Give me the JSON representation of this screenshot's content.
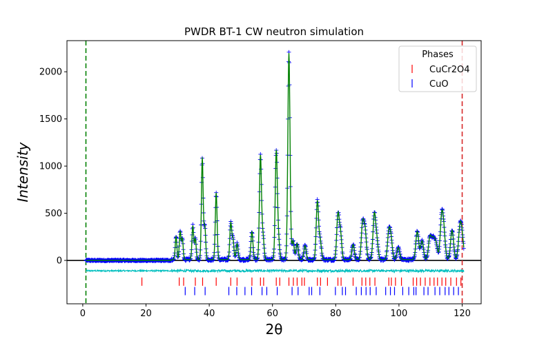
{
  "chart_data": {
    "type": "line",
    "title": "PWDR BT-1 CW neutron simulation",
    "xlabel": "2θ",
    "ylabel": "Intensity",
    "xlim": [
      -5,
      126
    ],
    "ylim": [
      -460,
      2330
    ],
    "xticks": [
      0,
      20,
      40,
      60,
      80,
      100,
      120
    ],
    "yticks": [
      0,
      500,
      1000,
      1500,
      2000
    ],
    "grid": false,
    "baseline_y": 0,
    "x_range_markers": [
      {
        "x": 1.0,
        "color": "#008000"
      },
      {
        "x": 120.0,
        "color": "#d62728"
      }
    ],
    "difference_offset": -110,
    "data_start_x": 1.0,
    "data_end_x": 120.5,
    "noise_level": 12,
    "peaks": [
      {
        "x": 29.5,
        "y": 250
      },
      {
        "x": 30.8,
        "y": 300
      },
      {
        "x": 31.5,
        "y": 220
      },
      {
        "x": 34.8,
        "y": 360
      },
      {
        "x": 35.6,
        "y": 220
      },
      {
        "x": 37.8,
        "y": 1080
      },
      {
        "x": 38.6,
        "y": 350
      },
      {
        "x": 42.2,
        "y": 710
      },
      {
        "x": 46.8,
        "y": 380
      },
      {
        "x": 47.5,
        "y": 210
      },
      {
        "x": 48.8,
        "y": 170
      },
      {
        "x": 53.5,
        "y": 300
      },
      {
        "x": 56.2,
        "y": 1100
      },
      {
        "x": 57.0,
        "y": 250
      },
      {
        "x": 61.2,
        "y": 1140
      },
      {
        "x": 61.9,
        "y": 210
      },
      {
        "x": 65.2,
        "y": 2190
      },
      {
        "x": 66.5,
        "y": 200
      },
      {
        "x": 67.8,
        "y": 170
      },
      {
        "x": 70.3,
        "y": 150
      },
      {
        "x": 74.2,
        "y": 620
      },
      {
        "x": 75.1,
        "y": 200
      },
      {
        "x": 80.7,
        "y": 470
      },
      {
        "x": 81.5,
        "y": 280
      },
      {
        "x": 85.5,
        "y": 160
      },
      {
        "x": 88.5,
        "y": 380
      },
      {
        "x": 89.3,
        "y": 300
      },
      {
        "x": 92.2,
        "y": 470
      },
      {
        "x": 93.0,
        "y": 200
      },
      {
        "x": 96.8,
        "y": 280
      },
      {
        "x": 97.5,
        "y": 200
      },
      {
        "x": 99.8,
        "y": 130
      },
      {
        "x": 105.8,
        "y": 300
      },
      {
        "x": 107.3,
        "y": 200
      },
      {
        "x": 109.8,
        "y": 240
      },
      {
        "x": 110.8,
        "y": 200
      },
      {
        "x": 111.7,
        "y": 170
      },
      {
        "x": 113.5,
        "y": 420
      },
      {
        "x": 114.2,
        "y": 260
      },
      {
        "x": 116.8,
        "y": 310
      },
      {
        "x": 119.3,
        "y": 320
      },
      {
        "x": 120.0,
        "y": 200
      }
    ],
    "series": [
      {
        "name": "CuCr2O4",
        "color": "#ff0000",
        "tick_y": -225,
        "reflections": [
          18.7,
          30.5,
          31.9,
          35.6,
          37.9,
          42.2,
          46.8,
          48.8,
          53.5,
          56.2,
          57.2,
          61.2,
          62.3,
          65.2,
          66.6,
          67.8,
          69.3,
          70.1,
          74.2,
          75.2,
          77.4,
          80.7,
          81.7,
          85.5,
          88.3,
          89.5,
          90.8,
          92.4,
          96.8,
          97.6,
          98.9,
          100.8,
          104.5,
          105.6,
          106.8,
          108.3,
          109.8,
          111.1,
          112.2,
          113.6,
          114.8,
          116.4,
          118.2,
          119.6
        ]
      },
      {
        "name": "CuO",
        "color": "#0000ff",
        "tick_y": -325,
        "reflections": [
          32.4,
          35.4,
          38.7,
          46.2,
          48.7,
          51.3,
          53.4,
          56.7,
          58.2,
          61.5,
          66.2,
          68.1,
          71.6,
          72.4,
          75.0,
          79.9,
          82.1,
          83.1,
          86.5,
          88.1,
          89.6,
          90.9,
          92.8,
          95.8,
          97.3,
          98.6,
          101.2,
          103.1,
          104.7,
          105.4,
          107.9,
          109.2,
          111.4,
          112.9,
          114.6,
          115.8,
          117.3,
          118.8
        ]
      }
    ],
    "legend": {
      "title": "Phases",
      "position": "upper right",
      "entries": [
        "CuCr2O4",
        "CuO"
      ]
    },
    "colors": {
      "observed": "#0000ff",
      "calculated": "#008000",
      "difference": "#00bfbf",
      "zero_line": "#000000"
    }
  }
}
